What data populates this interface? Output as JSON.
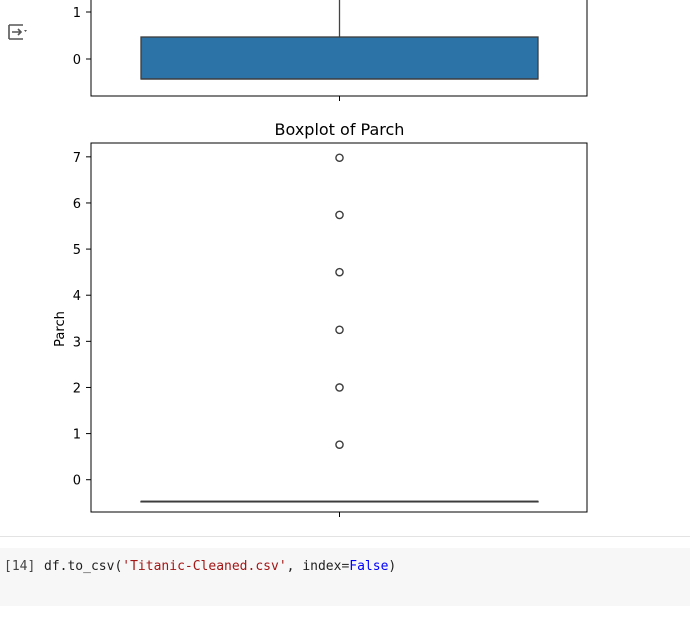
{
  "cell_output": {
    "toggle_icon": "output-toggle-icon"
  },
  "chart_data": [
    {
      "type": "box",
      "title": "",
      "ylabel": "",
      "visible_ticks": [
        1,
        0
      ],
      "q1": -0.47,
      "q3": 0.44,
      "median": -0.47,
      "box_color": "#2c73a8"
    },
    {
      "type": "box",
      "title": "Boxplot of Parch",
      "ylabel": "Parch",
      "ylim": [
        -0.7,
        7.3
      ],
      "yticks": [
        0,
        1,
        2,
        3,
        4,
        5,
        6,
        7
      ],
      "q1": -0.47,
      "median": -0.47,
      "q3": -0.47,
      "whisker_low": -0.47,
      "whisker_high": -0.47,
      "outliers": [
        0.76,
        2.0,
        3.25,
        4.5,
        5.74,
        6.98
      ],
      "box_color": "#2c73a8"
    }
  ],
  "code_cell": {
    "execution_count": "[14]",
    "code": {
      "prefix": "df.to_csv(",
      "arg1": "'Titanic-Cleaned.csv'",
      "sep": ", ",
      "kwarg": "index",
      "eq": "=",
      "value": "False",
      "suffix": ")"
    }
  }
}
